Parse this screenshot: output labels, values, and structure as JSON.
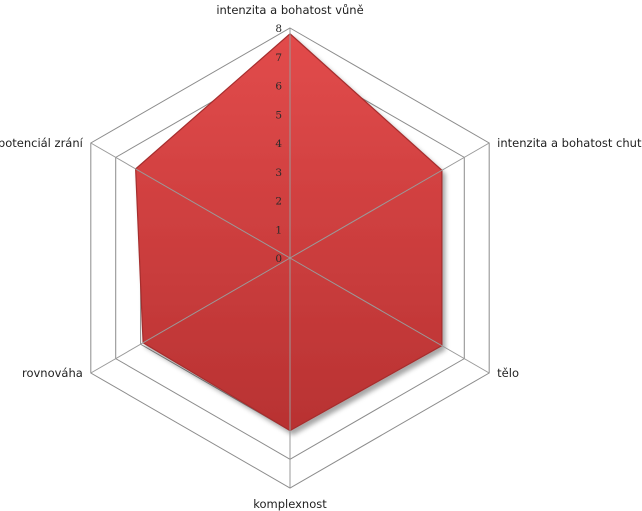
{
  "chart_data": {
    "type": "radar",
    "title": "",
    "categories": [
      "intenzita a bohatost vůně",
      "intenzita a bohatost chuti",
      "tělo",
      "komplexnost",
      "rovnováha",
      "potenciál zrání"
    ],
    "series": [
      {
        "values": [
          7.8,
          6.1,
          6.1,
          6.0,
          5.9,
          6.2
        ],
        "color": "#d64545"
      }
    ],
    "rlim": [
      0,
      8
    ],
    "ticks": [
      "0",
      "1",
      "2",
      "3",
      "4",
      "5",
      "6",
      "7",
      "8"
    ],
    "grid": true,
    "legend": "none"
  }
}
